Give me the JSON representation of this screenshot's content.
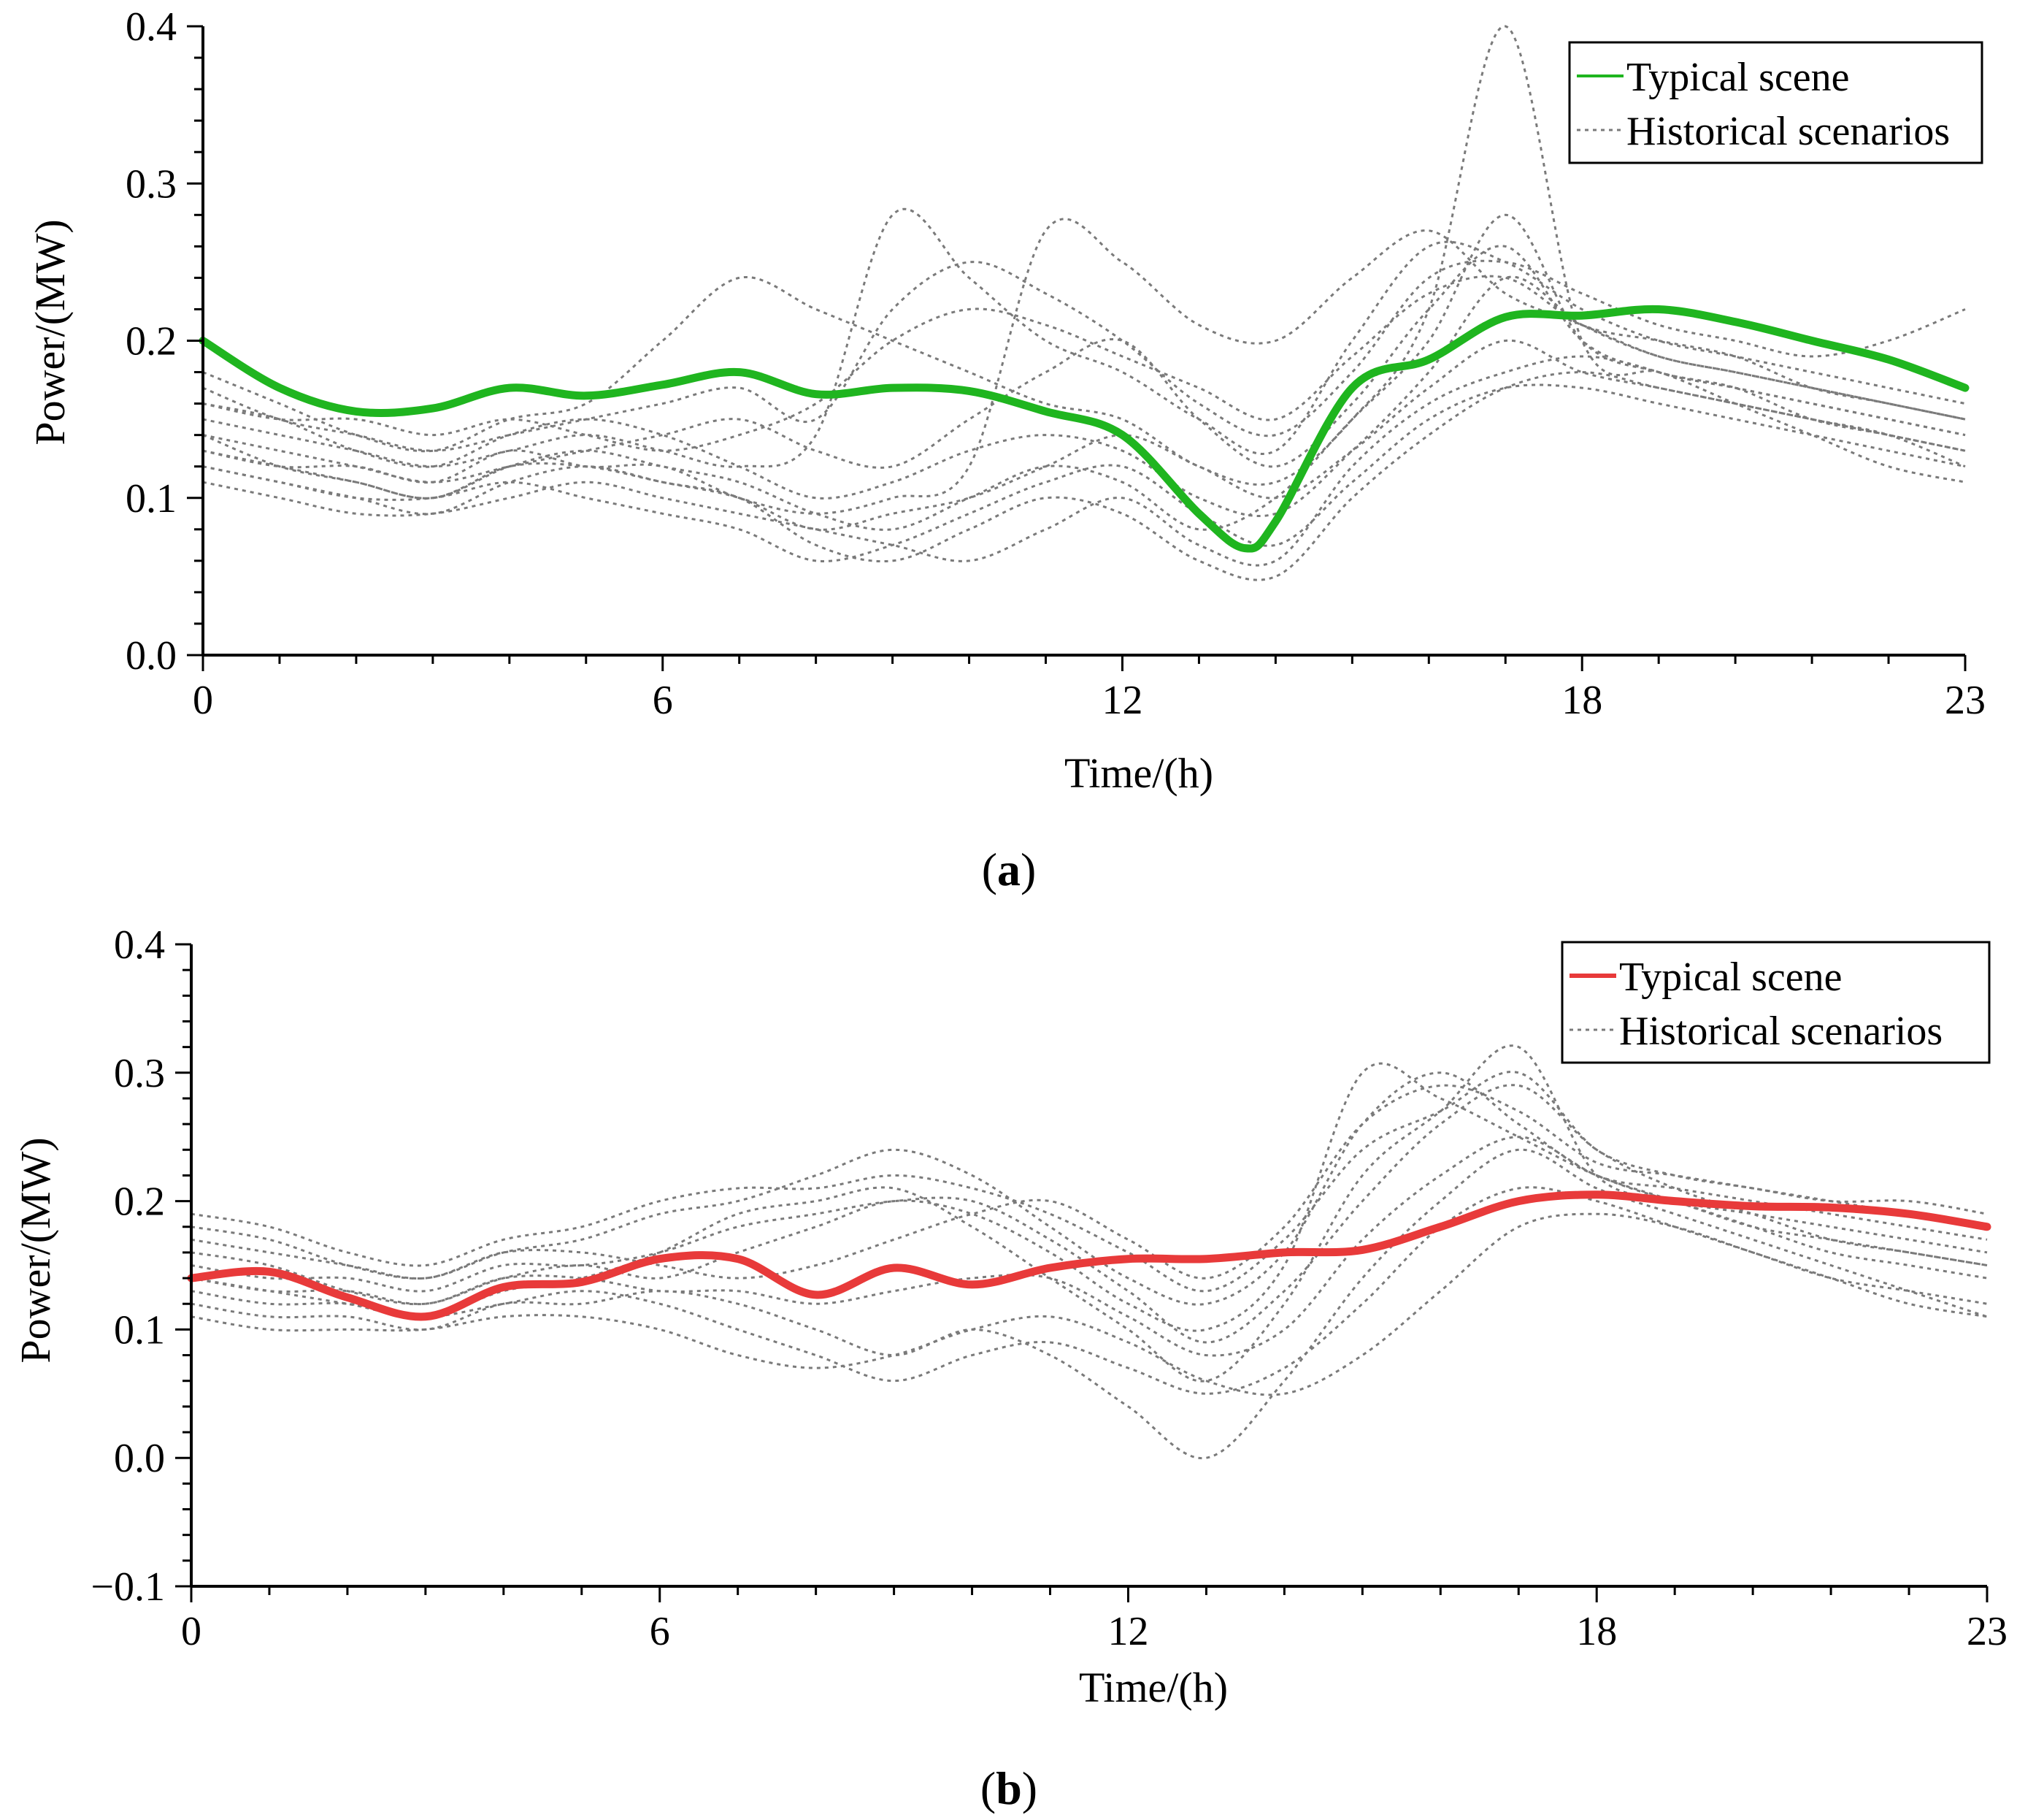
{
  "chart_data": [
    {
      "type": "line",
      "caption": "a",
      "xlabel": "Time/(h)",
      "ylabel": "Power/(MW)",
      "xlim": [
        0,
        23
      ],
      "ylim": [
        0.0,
        0.4
      ],
      "xticks": [
        0,
        6,
        12,
        18,
        23
      ],
      "xtick_labels": [
        "0",
        "6",
        "12",
        "18",
        "23"
      ],
      "yticks": [
        0.0,
        0.1,
        0.2,
        0.3,
        0.4
      ],
      "ytick_labels": [
        "0.0",
        "0.1",
        "0.2",
        "0.3",
        "0.4"
      ],
      "legend": {
        "position": "top-right",
        "entries": [
          "Typical scene",
          "Historical scenarios"
        ]
      },
      "typical": {
        "name": "Typical scene",
        "color": "#1fb51f",
        "x": [
          0,
          1,
          2,
          3,
          4,
          5,
          6,
          7,
          8,
          9,
          10,
          11,
          12,
          13,
          13.6,
          14,
          15,
          16,
          17,
          18,
          19,
          20,
          21,
          22,
          23
        ],
        "y": [
          0.2,
          0.17,
          0.155,
          0.157,
          0.17,
          0.165,
          0.172,
          0.18,
          0.166,
          0.17,
          0.168,
          0.155,
          0.14,
          0.09,
          0.068,
          0.085,
          0.17,
          0.188,
          0.215,
          0.216,
          0.22,
          0.212,
          0.2,
          0.188,
          0.17
        ]
      },
      "historical": {
        "name": "Historical scenarios",
        "color": "#7a7a7a",
        "x": [
          0,
          1,
          2,
          3,
          4,
          5,
          6,
          7,
          8,
          9,
          10,
          11,
          12,
          13,
          14,
          15,
          16,
          17,
          18,
          19,
          20,
          21,
          22,
          23
        ],
        "series": [
          [
            0.16,
            0.15,
            0.13,
            0.12,
            0.14,
            0.15,
            0.14,
            0.12,
            0.1,
            0.11,
            0.13,
            0.14,
            0.13,
            0.1,
            0.09,
            0.13,
            0.18,
            0.24,
            0.21,
            0.19,
            0.18,
            0.17,
            0.16,
            0.15
          ],
          [
            0.14,
            0.12,
            0.11,
            0.1,
            0.12,
            0.13,
            0.12,
            0.11,
            0.09,
            0.08,
            0.1,
            0.12,
            0.11,
            0.08,
            0.1,
            0.15,
            0.2,
            0.28,
            0.2,
            0.18,
            0.17,
            0.16,
            0.15,
            0.14
          ],
          [
            0.18,
            0.16,
            0.14,
            0.13,
            0.15,
            0.16,
            0.2,
            0.24,
            0.22,
            0.2,
            0.18,
            0.16,
            0.15,
            0.12,
            0.11,
            0.15,
            0.22,
            0.4,
            0.2,
            0.18,
            0.17,
            0.16,
            0.15,
            0.14
          ],
          [
            0.12,
            0.11,
            0.1,
            0.09,
            0.11,
            0.12,
            0.11,
            0.1,
            0.07,
            0.06,
            0.08,
            0.1,
            0.09,
            0.06,
            0.05,
            0.1,
            0.14,
            0.17,
            0.18,
            0.17,
            0.16,
            0.15,
            0.14,
            0.12
          ],
          [
            0.15,
            0.14,
            0.13,
            0.12,
            0.13,
            0.14,
            0.13,
            0.12,
            0.14,
            0.28,
            0.24,
            0.2,
            0.18,
            0.15,
            0.13,
            0.2,
            0.26,
            0.25,
            0.22,
            0.2,
            0.19,
            0.18,
            0.17,
            0.16
          ],
          [
            0.13,
            0.12,
            0.12,
            0.11,
            0.13,
            0.12,
            0.12,
            0.1,
            0.09,
            0.1,
            0.12,
            0.27,
            0.25,
            0.21,
            0.2,
            0.24,
            0.27,
            0.23,
            0.21,
            0.19,
            0.18,
            0.17,
            0.16,
            0.15
          ],
          [
            0.11,
            0.1,
            0.09,
            0.09,
            0.1,
            0.11,
            0.1,
            0.09,
            0.08,
            0.07,
            0.06,
            0.08,
            0.1,
            0.07,
            0.06,
            0.12,
            0.16,
            0.18,
            0.19,
            0.18,
            0.16,
            0.14,
            0.12,
            0.11
          ],
          [
            0.17,
            0.15,
            0.14,
            0.13,
            0.14,
            0.15,
            0.16,
            0.17,
            0.15,
            0.22,
            0.25,
            0.23,
            0.2,
            0.16,
            0.14,
            0.18,
            0.24,
            0.25,
            0.23,
            0.21,
            0.2,
            0.19,
            0.2,
            0.22
          ],
          [
            0.14,
            0.13,
            0.12,
            0.11,
            0.12,
            0.13,
            0.14,
            0.15,
            0.13,
            0.12,
            0.15,
            0.18,
            0.2,
            0.15,
            0.12,
            0.16,
            0.22,
            0.26,
            0.2,
            0.18,
            0.17,
            0.15,
            0.14,
            0.13
          ],
          [
            0.12,
            0.11,
            0.1,
            0.1,
            0.11,
            0.1,
            0.09,
            0.08,
            0.06,
            0.07,
            0.09,
            0.11,
            0.12,
            0.09,
            0.07,
            0.11,
            0.15,
            0.17,
            0.17,
            0.16,
            0.15,
            0.14,
            0.13,
            0.12
          ],
          [
            0.16,
            0.15,
            0.15,
            0.14,
            0.15,
            0.14,
            0.13,
            0.14,
            0.16,
            0.2,
            0.22,
            0.21,
            0.19,
            0.17,
            0.15,
            0.19,
            0.23,
            0.24,
            0.21,
            0.2,
            0.19,
            0.17,
            0.16,
            0.15
          ],
          [
            0.13,
            0.12,
            0.11,
            0.1,
            0.12,
            0.12,
            0.11,
            0.1,
            0.08,
            0.09,
            0.1,
            0.12,
            0.14,
            0.12,
            0.1,
            0.13,
            0.17,
            0.2,
            0.18,
            0.17,
            0.16,
            0.15,
            0.14,
            0.13
          ]
        ]
      }
    },
    {
      "type": "line",
      "caption": "b",
      "xlabel": "Time/(h)",
      "ylabel": "Power/(MW)",
      "xlim": [
        0,
        23
      ],
      "ylim": [
        -0.1,
        0.4
      ],
      "xticks": [
        0,
        6,
        12,
        18,
        23
      ],
      "xtick_labels": [
        "0",
        "6",
        "12",
        "18",
        "23"
      ],
      "yticks": [
        -0.1,
        0.0,
        0.1,
        0.2,
        0.3,
        0.4
      ],
      "ytick_labels": [
        "−0.1",
        "0.0",
        "0.1",
        "0.2",
        "0.3",
        "0.4"
      ],
      "legend": {
        "position": "top-right",
        "entries": [
          "Typical scene",
          "Historical scenarios"
        ]
      },
      "typical": {
        "name": "Typical scene",
        "color": "#e83a3a",
        "x": [
          0,
          1,
          2,
          3,
          4,
          5,
          6,
          7,
          8,
          9,
          10,
          11,
          12,
          13,
          14,
          15,
          16,
          17,
          18,
          19,
          20,
          21,
          22,
          23
        ],
        "y": [
          0.14,
          0.145,
          0.125,
          0.11,
          0.133,
          0.137,
          0.155,
          0.155,
          0.127,
          0.148,
          0.135,
          0.148,
          0.155,
          0.155,
          0.16,
          0.162,
          0.18,
          0.2,
          0.205,
          0.2,
          0.196,
          0.195,
          0.19,
          0.18
        ]
      },
      "historical": {
        "name": "Historical scenarios",
        "color": "#7a7a7a",
        "x": [
          0,
          1,
          2,
          3,
          4,
          5,
          6,
          7,
          8,
          9,
          10,
          11,
          12,
          13,
          14,
          15,
          16,
          17,
          18,
          19,
          20,
          21,
          22,
          23
        ],
        "series": [
          [
            0.16,
            0.15,
            0.13,
            0.12,
            0.14,
            0.15,
            0.14,
            0.16,
            0.18,
            0.2,
            0.19,
            0.16,
            0.12,
            0.1,
            0.15,
            0.3,
            0.28,
            0.25,
            0.22,
            0.2,
            0.19,
            0.18,
            0.17,
            0.16
          ],
          [
            0.14,
            0.13,
            0.12,
            0.11,
            0.13,
            0.14,
            0.16,
            0.19,
            0.2,
            0.21,
            0.18,
            0.14,
            0.1,
            0.06,
            0.12,
            0.22,
            0.27,
            0.32,
            0.22,
            0.2,
            0.18,
            0.17,
            0.16,
            0.15
          ],
          [
            0.12,
            0.11,
            0.11,
            0.1,
            0.12,
            0.12,
            0.13,
            0.12,
            0.1,
            0.08,
            0.1,
            0.08,
            0.04,
            0.0,
            0.06,
            0.14,
            0.2,
            0.24,
            0.21,
            0.19,
            0.17,
            0.15,
            0.13,
            0.11
          ],
          [
            0.18,
            0.17,
            0.15,
            0.14,
            0.16,
            0.17,
            0.19,
            0.2,
            0.22,
            0.24,
            0.22,
            0.18,
            0.14,
            0.12,
            0.16,
            0.26,
            0.3,
            0.26,
            0.22,
            0.21,
            0.2,
            0.19,
            0.18,
            0.17
          ],
          [
            0.13,
            0.12,
            0.12,
            0.11,
            0.12,
            0.13,
            0.12,
            0.1,
            0.08,
            0.06,
            0.08,
            0.09,
            0.07,
            0.05,
            0.07,
            0.12,
            0.18,
            0.21,
            0.2,
            0.18,
            0.16,
            0.14,
            0.13,
            0.12
          ],
          [
            0.15,
            0.14,
            0.14,
            0.13,
            0.15,
            0.15,
            0.16,
            0.18,
            0.19,
            0.2,
            0.2,
            0.17,
            0.13,
            0.09,
            0.13,
            0.2,
            0.26,
            0.29,
            0.24,
            0.21,
            0.19,
            0.17,
            0.16,
            0.15
          ],
          [
            0.17,
            0.16,
            0.15,
            0.14,
            0.16,
            0.16,
            0.15,
            0.14,
            0.15,
            0.17,
            0.19,
            0.2,
            0.17,
            0.14,
            0.18,
            0.26,
            0.29,
            0.27,
            0.23,
            0.22,
            0.21,
            0.2,
            0.19,
            0.18
          ],
          [
            0.11,
            0.1,
            0.1,
            0.1,
            0.11,
            0.11,
            0.1,
            0.08,
            0.07,
            0.08,
            0.1,
            0.11,
            0.09,
            0.06,
            0.05,
            0.08,
            0.13,
            0.18,
            0.19,
            0.18,
            0.16,
            0.14,
            0.12,
            0.11
          ],
          [
            0.19,
            0.18,
            0.16,
            0.15,
            0.17,
            0.18,
            0.2,
            0.21,
            0.21,
            0.22,
            0.21,
            0.19,
            0.16,
            0.13,
            0.17,
            0.24,
            0.27,
            0.3,
            0.24,
            0.22,
            0.21,
            0.2,
            0.2,
            0.19
          ],
          [
            0.14,
            0.13,
            0.13,
            0.12,
            0.14,
            0.14,
            0.13,
            0.13,
            0.12,
            0.13,
            0.14,
            0.14,
            0.11,
            0.08,
            0.1,
            0.17,
            0.22,
            0.25,
            0.22,
            0.2,
            0.18,
            0.16,
            0.15,
            0.14
          ]
        ]
      }
    }
  ]
}
